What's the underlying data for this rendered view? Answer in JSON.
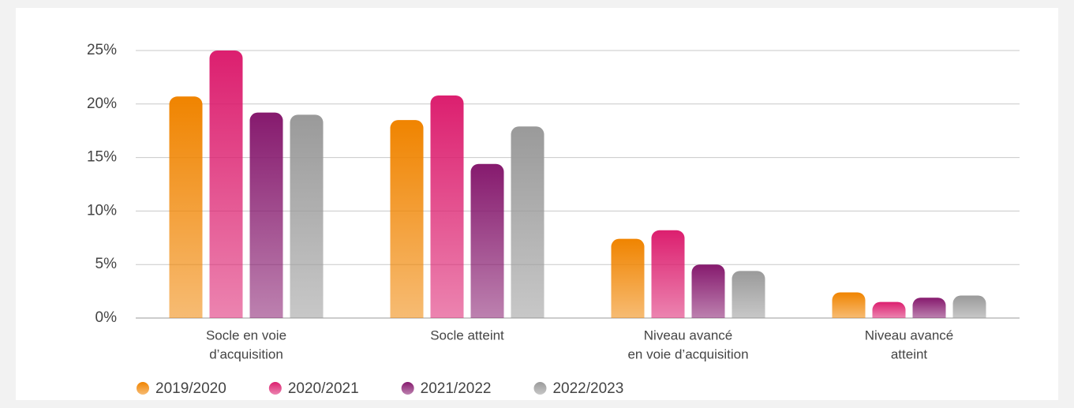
{
  "chart_data": {
    "type": "bar",
    "categories": [
      [
        "Socle en voie",
        "d’acquisition"
      ],
      [
        "Socle atteint"
      ],
      [
        "Niveau avancé",
        "en voie d’acquisition"
      ],
      [
        "Niveau avancé",
        "atteint"
      ]
    ],
    "series": [
      {
        "name": "2019/2020",
        "color": "#f08400",
        "values": [
          20.7,
          18.5,
          7.4,
          2.4
        ]
      },
      {
        "name": "2020/2021",
        "color": "#dc1f6f",
        "values": [
          25.0,
          20.8,
          8.2,
          1.5
        ]
      },
      {
        "name": "2021/2022",
        "color": "#861a6e",
        "values": [
          19.2,
          14.4,
          5.0,
          1.9
        ]
      },
      {
        "name": "2022/2023",
        "color": "#9a9a9a",
        "values": [
          19.0,
          17.9,
          4.4,
          2.1
        ]
      }
    ],
    "ylim": [
      0,
      25
    ],
    "yticks": [
      {
        "value": 0,
        "label": "0%"
      },
      {
        "value": 5,
        "label": "5%"
      },
      {
        "value": 10,
        "label": "10%"
      },
      {
        "value": 15,
        "label": "15%"
      },
      {
        "value": 20,
        "label": "20%"
      },
      {
        "value": 25,
        "label": "25%"
      }
    ],
    "grid": true,
    "legend": "bottom"
  }
}
